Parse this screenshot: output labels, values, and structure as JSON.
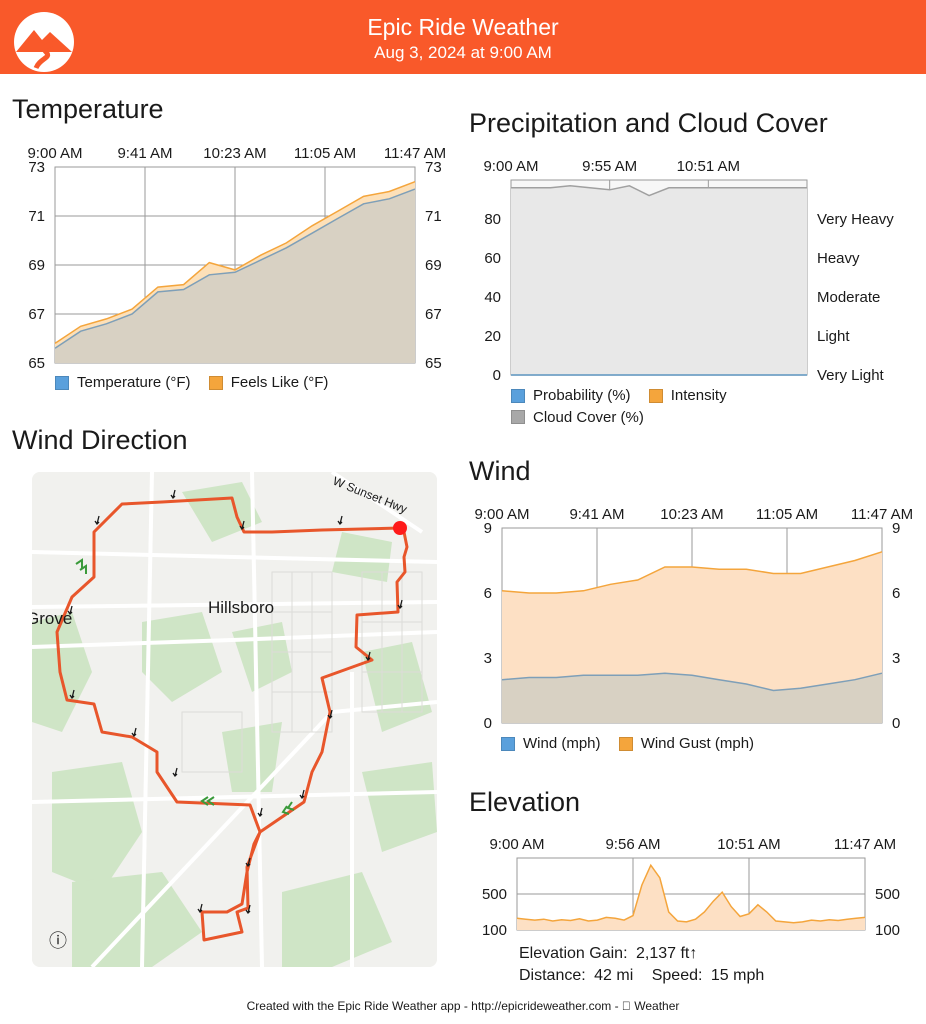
{
  "app": {
    "title": "Epic Ride Weather",
    "subtitle": "Aug 3, 2024 at 9:00 AM",
    "brand_color": "#f9592a"
  },
  "sections": {
    "temperature": "Temperature",
    "precipitation": "Precipitation and Cloud Cover",
    "wind_direction": "Wind Direction",
    "wind": "Wind",
    "elevation": "Elevation"
  },
  "chart_data": [
    {
      "id": "temperature",
      "type": "area",
      "x_ticks": [
        "9:00 AM",
        "9:41 AM",
        "10:23 AM",
        "11:05 AM",
        "11:47 AM"
      ],
      "ylim": [
        65,
        73
      ],
      "y_ticks": [
        65,
        67,
        69,
        71,
        73
      ],
      "grid": true,
      "series": [
        {
          "name": "Temperature (°F)",
          "color": "#5aa0dc",
          "values": [
            65.6,
            66.3,
            66.6,
            67.0,
            67.9,
            68.0,
            68.6,
            68.7,
            69.2,
            69.7,
            70.3,
            70.9,
            71.5,
            71.7,
            72.1
          ]
        },
        {
          "name": "Feels Like (°F)",
          "color": "#f4a53c",
          "values": [
            65.8,
            66.5,
            66.8,
            67.2,
            68.1,
            68.2,
            69.1,
            68.8,
            69.4,
            69.9,
            70.6,
            71.2,
            71.8,
            72.0,
            72.4
          ]
        }
      ]
    },
    {
      "id": "precipitation",
      "type": "area",
      "x_ticks": [
        "9:00 AM",
        "9:55 AM",
        "10:51 AM"
      ],
      "ylim": [
        0,
        100
      ],
      "y_ticks": [
        0,
        20,
        40,
        60,
        80
      ],
      "y_labels_right": [
        "Very Light",
        "Light",
        "Moderate",
        "Heavy",
        "Very Heavy"
      ],
      "grid": true,
      "series": [
        {
          "name": "Probability (%)",
          "color": "#5aa0dc",
          "values": [
            0,
            0,
            0,
            0,
            0,
            0,
            0,
            0,
            0,
            0,
            0,
            0,
            0,
            0,
            0,
            0
          ]
        },
        {
          "name": "Intensity",
          "color": "#f4a53c",
          "values": [
            0,
            0,
            0,
            0,
            0,
            0,
            0,
            0,
            0,
            0,
            0,
            0,
            0,
            0,
            0,
            0
          ]
        },
        {
          "name": "Cloud Cover (%)",
          "color": "#a8a8a8",
          "values": [
            96,
            96,
            96,
            97,
            96,
            95,
            97,
            92,
            96,
            96,
            96,
            96,
            96,
            96,
            96,
            96
          ]
        }
      ]
    },
    {
      "id": "wind",
      "type": "area",
      "x_ticks": [
        "9:00 AM",
        "9:41 AM",
        "10:23 AM",
        "11:05 AM",
        "11:47 AM"
      ],
      "ylim": [
        0,
        9
      ],
      "y_ticks": [
        0,
        3,
        6,
        9
      ],
      "grid": true,
      "series": [
        {
          "name": "Wind (mph)",
          "color": "#5aa0dc",
          "values": [
            2.0,
            2.1,
            2.1,
            2.2,
            2.2,
            2.2,
            2.3,
            2.2,
            2.0,
            1.8,
            1.5,
            1.6,
            1.8,
            2.0,
            2.3
          ]
        },
        {
          "name": "Wind Gust (mph)",
          "color": "#f4a53c",
          "values": [
            6.1,
            6.0,
            6.0,
            6.1,
            6.4,
            6.6,
            7.2,
            7.2,
            7.1,
            7.1,
            6.9,
            6.9,
            7.2,
            7.5,
            7.9
          ]
        }
      ]
    },
    {
      "id": "elevation",
      "type": "area",
      "x_ticks": [
        "9:00 AM",
        "9:56 AM",
        "10:51 AM",
        "11:47 AM"
      ],
      "ylim": [
        100,
        900
      ],
      "y_ticks": [
        100,
        500
      ],
      "grid": true,
      "series": [
        {
          "name": "Elevation",
          "color": "#f4a53c",
          "values": [
            230,
            220,
            210,
            220,
            200,
            215,
            205,
            225,
            200,
            210,
            240,
            230,
            210,
            260,
            600,
            820,
            680,
            300,
            200,
            190,
            220,
            300,
            420,
            520,
            360,
            250,
            280,
            380,
            300,
            200,
            190,
            180,
            190,
            210,
            200,
            215,
            205,
            220,
            230,
            240
          ]
        }
      ]
    }
  ],
  "map": {
    "labels": {
      "city": "Hillsboro",
      "west": "Grove",
      "road": "W Sunset Hwy"
    },
    "info_icon": "ⓘ"
  },
  "stats": {
    "gain_label": "Elevation Gain:",
    "gain_value": "2,137 ft↑",
    "distance_label": "Distance:",
    "distance_value": "42 mi",
    "speed_label": "Speed:",
    "speed_value": "15 mph"
  },
  "footer": "Created with the Epic Ride Weather app - http://epicrideweather.com -  Weather"
}
